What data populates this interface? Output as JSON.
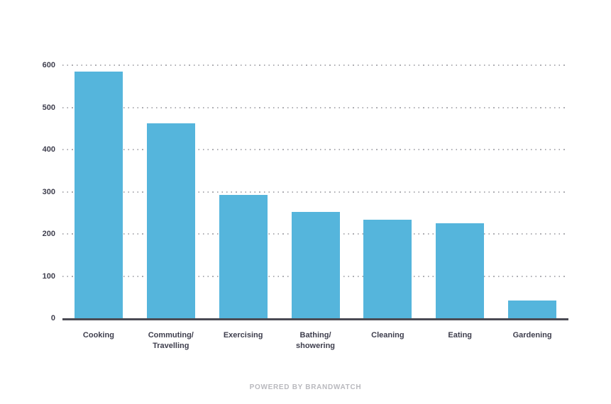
{
  "chart_data": {
    "type": "bar",
    "title": "",
    "xlabel": "",
    "ylabel": "",
    "categories": [
      "Cooking",
      "Commuting/\nTravelling",
      "Exercising",
      "Bathing/\nshowering",
      "Cleaning",
      "Eating",
      "Gardening"
    ],
    "values": [
      585,
      462,
      292,
      252,
      234,
      226,
      42
    ],
    "ylim": [
      0,
      600
    ],
    "yticks": [
      0,
      100,
      200,
      300,
      400,
      500,
      600
    ],
    "grid": "horizontal-dotted",
    "legend_position": "none",
    "bar_color": "#55b5dc",
    "axis_color": "#4b4b54",
    "tick_label_color": "#3e3e4d",
    "gridline_color": "#aeaeb3",
    "footer_color": "#b9b9be"
  },
  "footer": {
    "text": "POWERED BY BRANDWATCH"
  }
}
